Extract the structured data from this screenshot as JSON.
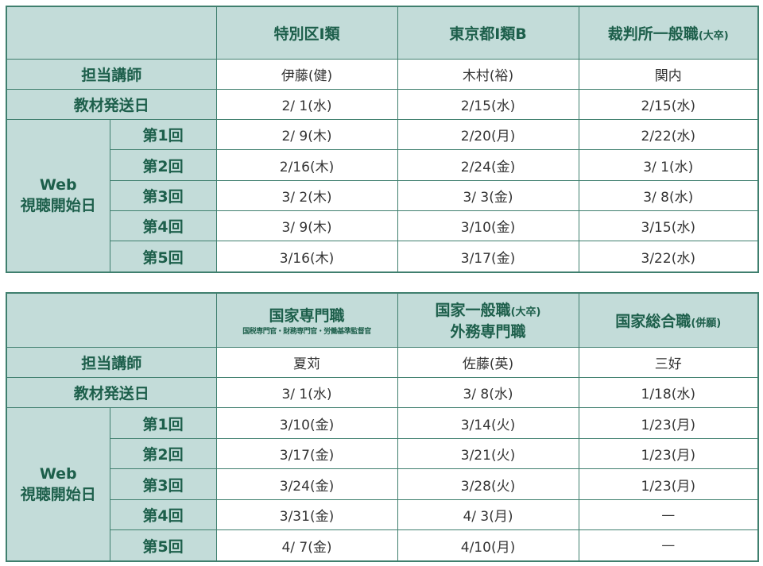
{
  "tables": [
    {
      "headers": [
        {
          "title": "特別区Ⅰ類",
          "suffix": ""
        },
        {
          "title": "東京都Ⅰ類B",
          "suffix": ""
        },
        {
          "title": "裁判所一般職",
          "suffix": "(大卒)"
        }
      ],
      "instructor_label": "担当講師",
      "instructors": [
        "伊藤(健)",
        "木村(裕)",
        "関内"
      ],
      "ship_label": "教材発送日",
      "ship": [
        "2/ 1(水)",
        "2/15(水)",
        "2/15(水)"
      ],
      "web_label_1": "Web",
      "web_label_2": "視聴開始日",
      "rounds": [
        {
          "label": "第1回",
          "values": [
            "2/ 9(木)",
            "2/20(月)",
            "2/22(水)"
          ]
        },
        {
          "label": "第2回",
          "values": [
            "2/16(木)",
            "2/24(金)",
            "3/ 1(水)"
          ]
        },
        {
          "label": "第3回",
          "values": [
            "3/ 2(木)",
            "3/ 3(金)",
            "3/ 8(水)"
          ]
        },
        {
          "label": "第4回",
          "values": [
            "3/ 9(木)",
            "3/10(金)",
            "3/15(水)"
          ]
        },
        {
          "label": "第5回",
          "values": [
            "3/16(木)",
            "3/17(金)",
            "3/22(水)"
          ]
        }
      ]
    },
    {
      "headers": [
        {
          "title": "国家専門職",
          "sub": "国税専門官・財務専門官・労働基準監督官"
        },
        {
          "title": "国家一般職",
          "suffix": "(大卒)",
          "line2": "外務専門職"
        },
        {
          "title": "国家総合職",
          "suffix": "(併願)"
        }
      ],
      "instructor_label": "担当講師",
      "instructors": [
        "夏苅",
        "佐藤(英)",
        "三好"
      ],
      "ship_label": "教材発送日",
      "ship": [
        "3/ 1(水)",
        "3/ 8(水)",
        "1/18(水)"
      ],
      "web_label_1": "Web",
      "web_label_2": "視聴開始日",
      "rounds": [
        {
          "label": "第1回",
          "values": [
            "3/10(金)",
            "3/14(火)",
            "1/23(月)"
          ]
        },
        {
          "label": "第2回",
          "values": [
            "3/17(金)",
            "3/21(火)",
            "1/23(月)"
          ]
        },
        {
          "label": "第3回",
          "values": [
            "3/24(金)",
            "3/28(火)",
            "1/23(月)"
          ]
        },
        {
          "label": "第4回",
          "values": [
            "3/31(金)",
            "4/ 3(月)",
            "—"
          ]
        },
        {
          "label": "第5回",
          "values": [
            "4/ 7(金)",
            "4/10(月)",
            "—"
          ]
        }
      ]
    }
  ]
}
